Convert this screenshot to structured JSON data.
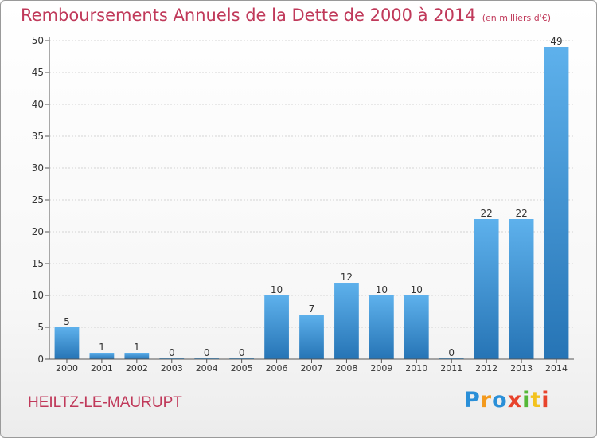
{
  "header": {
    "title": "Remboursements Annuels de la Dette de 2000 à 2014",
    "unit": "(en milliers d'€)"
  },
  "footer": {
    "commune": "HEILTZ-LE-MAURUPT",
    "logo": {
      "text": "Proxiti",
      "letters": [
        {
          "char": "P",
          "color": "#2a8fd8"
        },
        {
          "char": "r",
          "color": "#f39a1e"
        },
        {
          "char": "o",
          "color": "#2a8fd8"
        },
        {
          "char": "x",
          "color": "#e8432c"
        },
        {
          "char": "i",
          "color": "#55b837"
        },
        {
          "char": "t",
          "color": "#f3c21e"
        },
        {
          "char": "i",
          "color": "#e8432c"
        }
      ]
    }
  },
  "colors": {
    "bar_light": "#5eb1ec",
    "bar_dark": "#2674b5",
    "title": "#c0395a",
    "axis": "#555555",
    "grid": "#d4d4d4"
  },
  "chart_data": {
    "type": "bar",
    "categories": [
      "2000",
      "2001",
      "2002",
      "2003",
      "2004",
      "2005",
      "2006",
      "2007",
      "2008",
      "2009",
      "2010",
      "2011",
      "2012",
      "2013",
      "2014"
    ],
    "values": [
      5,
      1,
      1,
      0,
      0,
      0,
      10,
      7,
      12,
      10,
      10,
      0,
      22,
      22,
      49
    ],
    "data_labels": [
      "5",
      "1",
      "1",
      "0",
      "0",
      "0",
      "10",
      "7",
      "12",
      "10",
      "10",
      "0",
      "22",
      "22",
      "49"
    ],
    "title": "Remboursements Annuels de la Dette de 2000 à 2014",
    "subtitle": "(en milliers d'€)",
    "xlabel": "",
    "ylabel": "",
    "ylim": [
      0,
      50
    ],
    "yticks": [
      0,
      5,
      10,
      15,
      20,
      25,
      30,
      35,
      40,
      45,
      50
    ],
    "grid": true,
    "legend": "none"
  }
}
